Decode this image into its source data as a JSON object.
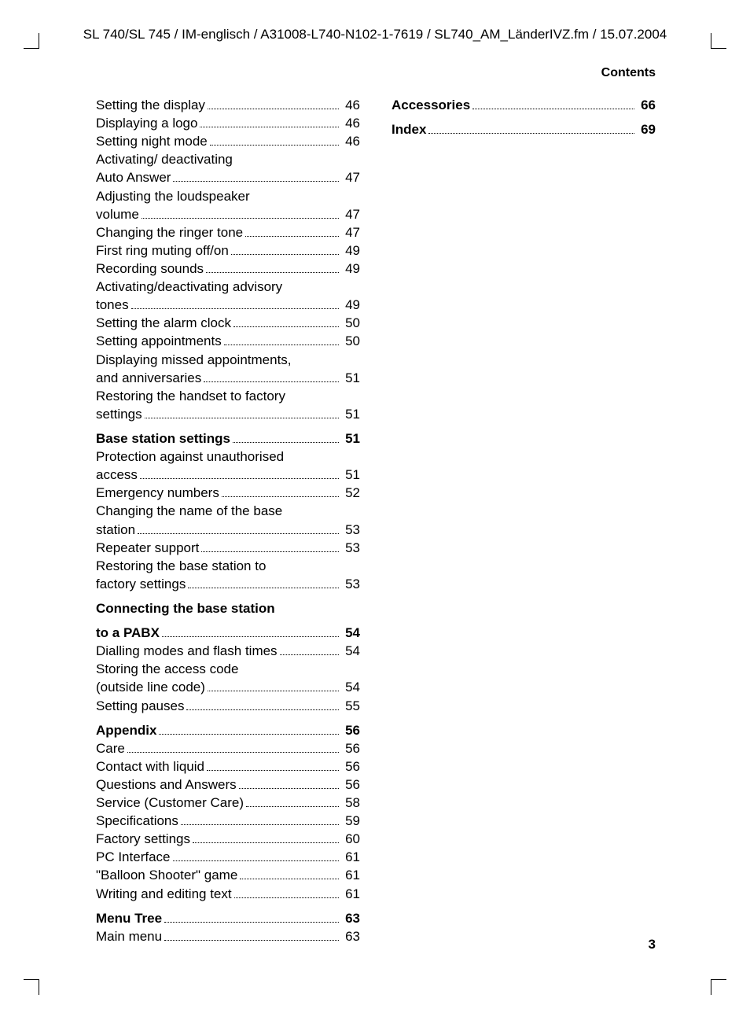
{
  "header_path": "SL 740/SL 745 / IM-englisch / A31008-L740-N102-1-7619 / SL740_AM_LänderIVZ.fm / 15.07.2004",
  "contents_label": "Contents",
  "page_number": "3",
  "left_column": [
    {
      "type": "item",
      "label": "Setting the display",
      "page": "46"
    },
    {
      "type": "item",
      "label": "Displaying a logo",
      "page": "46"
    },
    {
      "type": "item",
      "label": "Setting night mode",
      "page": "46"
    },
    {
      "type": "cont",
      "label": "Activating/ deactivating"
    },
    {
      "type": "item",
      "label": "Auto Answer",
      "page": "47"
    },
    {
      "type": "cont",
      "label": "Adjusting the loudspeaker"
    },
    {
      "type": "item",
      "label": "volume",
      "page": "47"
    },
    {
      "type": "item",
      "label": "Changing the ringer tone",
      "page": "47"
    },
    {
      "type": "item",
      "label": "First ring muting off/on",
      "page": "49"
    },
    {
      "type": "item",
      "label": "Recording sounds",
      "page": "49"
    },
    {
      "type": "cont",
      "label": "Activating/deactivating advisory"
    },
    {
      "type": "item",
      "label": "tones",
      "page": "49"
    },
    {
      "type": "item",
      "label": "Setting the alarm clock",
      "page": "50"
    },
    {
      "type": "item",
      "label": "Setting appointments",
      "page": "50"
    },
    {
      "type": "cont",
      "label": "Displaying missed appointments,"
    },
    {
      "type": "item",
      "label": "and anniversaries",
      "page": "51"
    },
    {
      "type": "cont",
      "label": "Restoring the handset to factory"
    },
    {
      "type": "item",
      "label": "settings",
      "page": "51"
    },
    {
      "type": "heading",
      "label": "Base station settings",
      "page": "51"
    },
    {
      "type": "cont",
      "label": "Protection against unauthorised"
    },
    {
      "type": "item",
      "label": "access",
      "page": "51"
    },
    {
      "type": "item",
      "label": "Emergency numbers",
      "page": "52"
    },
    {
      "type": "cont",
      "label": "Changing the name of the base"
    },
    {
      "type": "item",
      "label": "station",
      "page": "53"
    },
    {
      "type": "item",
      "label": "Repeater support",
      "page": "53"
    },
    {
      "type": "cont",
      "label": "Restoring the base station to"
    },
    {
      "type": "item",
      "label": "factory settings",
      "page": "53"
    },
    {
      "type": "headcont",
      "label": "Connecting the base station"
    },
    {
      "type": "heading",
      "label": "to a PABX",
      "page": "54"
    },
    {
      "type": "item",
      "label": "Dialling modes and flash times",
      "page": "54"
    },
    {
      "type": "cont",
      "label": "Storing the access code"
    },
    {
      "type": "item",
      "label": "(outside line code)",
      "page": "54"
    },
    {
      "type": "item",
      "label": "Setting pauses",
      "page": "55"
    },
    {
      "type": "heading",
      "label": "Appendix",
      "page": "56"
    },
    {
      "type": "item",
      "label": "Care",
      "page": "56"
    },
    {
      "type": "item",
      "label": "Contact with liquid",
      "page": "56"
    },
    {
      "type": "item",
      "label": "Questions and Answers",
      "page": "56"
    },
    {
      "type": "item",
      "label": "Service (Customer Care)",
      "page": "58"
    },
    {
      "type": "item",
      "label": "Specifications",
      "page": "59"
    },
    {
      "type": "item",
      "label": "Factory settings",
      "page": "60"
    },
    {
      "type": "item",
      "label": "PC Interface",
      "page": "61"
    },
    {
      "type": "item",
      "label": "\"Balloon Shooter\" game",
      "page": "61"
    },
    {
      "type": "item",
      "label": "Writing and editing text",
      "page": "61"
    },
    {
      "type": "heading",
      "label": "Menu Tree",
      "page": "63"
    },
    {
      "type": "item",
      "label": "Main menu",
      "page": "63"
    }
  ],
  "right_column": [
    {
      "type": "heading",
      "label": "Accessories",
      "page": "66"
    },
    {
      "type": "heading",
      "label": "Index",
      "page": "69"
    }
  ]
}
